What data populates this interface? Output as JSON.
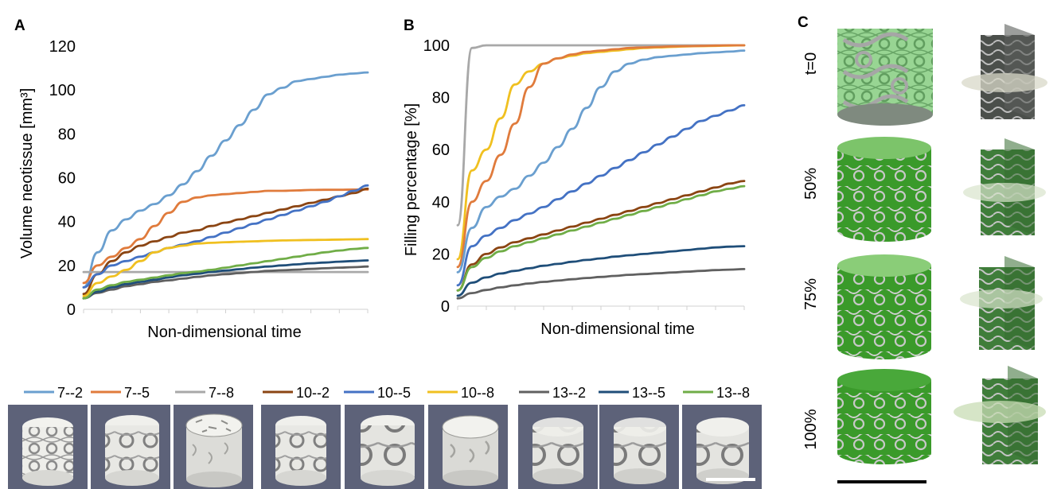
{
  "panels": {
    "a": "A",
    "b": "B",
    "c": "C"
  },
  "colors": {
    "7--2": "#6a9fcf",
    "7--5": "#e07b3c",
    "7--8": "#a8a8a8",
    "10--2": "#8b4513",
    "10--5": "#4472c4",
    "10--8": "#f0c020",
    "13--2": "#606060",
    "13--5": "#1f4e79",
    "13--8": "#70ad47"
  },
  "legend": [
    {
      "key": "7--2",
      "label": "7--2"
    },
    {
      "key": "7--5",
      "label": "7--5"
    },
    {
      "key": "7--8",
      "label": "7--8"
    },
    {
      "key": "10--2",
      "label": "10--2"
    },
    {
      "key": "10--5",
      "label": "10--5"
    },
    {
      "key": "10--8",
      "label": "10--8"
    },
    {
      "key": "13--2",
      "label": "13--2"
    },
    {
      "key": "13--5",
      "label": "13--5"
    },
    {
      "key": "13--8",
      "label": "13--8"
    }
  ],
  "chart_data": [
    {
      "type": "line",
      "xlabel": "Non-dimensional time",
      "ylabel": "Volume neotissue [mm³]",
      "ylim": [
        0,
        120
      ],
      "yticks": [
        0,
        20,
        40,
        60,
        80,
        100,
        120
      ],
      "grid": false,
      "x": [
        0,
        0.05,
        0.1,
        0.15,
        0.2,
        0.25,
        0.3,
        0.35,
        0.4,
        0.45,
        0.5,
        0.55,
        0.6,
        0.65,
        0.7,
        0.75,
        0.8,
        0.85,
        0.9,
        0.95,
        1.0
      ],
      "series": [
        {
          "key": "7--2",
          "values": [
            10,
            26,
            36,
            41,
            45,
            48,
            52,
            57,
            63,
            70,
            77,
            84,
            91,
            98,
            101,
            104,
            105,
            106,
            107,
            107.5,
            108
          ]
        },
        {
          "key": "7--5",
          "values": [
            12,
            20,
            24,
            28,
            32,
            38,
            44,
            49,
            51,
            52,
            52.5,
            53,
            53.5,
            54,
            54,
            54.2,
            54.4,
            54.5,
            54.5,
            54.6,
            54.6
          ]
        },
        {
          "key": "7--8",
          "values": [
            17,
            17,
            17,
            17,
            17,
            17,
            17,
            17,
            17,
            17,
            17,
            17,
            17,
            17,
            17,
            17,
            17,
            17,
            17,
            17,
            17
          ]
        },
        {
          "key": "10--2",
          "values": [
            7,
            16,
            22,
            26,
            29,
            31,
            33,
            35,
            36,
            38,
            39.5,
            41,
            42.5,
            44,
            45.5,
            47,
            48.5,
            50,
            51.5,
            53,
            55
          ]
        },
        {
          "key": "10--5",
          "values": [
            10,
            16,
            20,
            22,
            24,
            26,
            28,
            29.5,
            31,
            33,
            35,
            37,
            39,
            41,
            43,
            45,
            47,
            49,
            51.5,
            54,
            56.5
          ]
        },
        {
          "key": "10--8",
          "values": [
            6,
            12,
            15,
            18,
            22,
            26,
            28,
            29,
            30,
            30.3,
            30.6,
            30.8,
            31,
            31.2,
            31.4,
            31.5,
            31.6,
            31.7,
            31.8,
            31.9,
            32
          ]
        },
        {
          "key": "13--2",
          "values": [
            5,
            7.5,
            9,
            10.5,
            11.5,
            12.5,
            13.2,
            14,
            14.8,
            15.5,
            16,
            16.5,
            17,
            17.5,
            17.8,
            18.1,
            18.4,
            18.7,
            19,
            19.2,
            19.5
          ]
        },
        {
          "key": "13--5",
          "values": [
            5,
            8,
            10,
            11.5,
            12.5,
            13.5,
            14.5,
            15.5,
            16.2,
            17,
            17.7,
            18.3,
            19,
            19.5,
            20,
            20.5,
            21,
            21.3,
            21.7,
            22,
            22.3
          ]
        },
        {
          "key": "13--8",
          "values": [
            5,
            9,
            11,
            12.5,
            13.5,
            14.5,
            15.5,
            16.5,
            17.2,
            18,
            19,
            20,
            21,
            22,
            23,
            24,
            25,
            26,
            26.8,
            27.5,
            28
          ]
        }
      ]
    },
    {
      "type": "line",
      "xlabel": "Non-dimensional time",
      "ylabel": "Filling percentage [%]",
      "ylim": [
        0,
        100
      ],
      "yticks": [
        0,
        20,
        40,
        60,
        80,
        100
      ],
      "grid": false,
      "x": [
        0,
        0.05,
        0.1,
        0.15,
        0.2,
        0.25,
        0.3,
        0.35,
        0.4,
        0.45,
        0.5,
        0.55,
        0.6,
        0.65,
        0.7,
        0.75,
        0.8,
        0.85,
        0.9,
        0.95,
        1.0
      ],
      "series": [
        {
          "key": "7--8",
          "values": [
            31,
            99,
            100,
            100,
            100,
            100,
            100,
            100,
            100,
            100,
            100,
            100,
            100,
            100,
            100,
            100,
            100,
            100,
            100,
            100,
            100
          ]
        },
        {
          "key": "10--8",
          "values": [
            18,
            52,
            60,
            72,
            85,
            90,
            93,
            95,
            96,
            97,
            97.5,
            98,
            98.5,
            99,
            99.2,
            99.4,
            99.6,
            99.7,
            99.8,
            99.9,
            100
          ]
        },
        {
          "key": "7--5",
          "values": [
            15,
            40,
            48,
            58,
            70,
            84,
            93,
            95,
            96.5,
            97.5,
            98,
            98.5,
            99,
            99.2,
            99.4,
            99.6,
            99.7,
            99.8,
            99.9,
            100,
            100
          ]
        },
        {
          "key": "7--2",
          "values": [
            13,
            30,
            38,
            42,
            45,
            50,
            55,
            61,
            68,
            76,
            84,
            90,
            93,
            94.5,
            95.5,
            96,
            96.5,
            97,
            97.3,
            97.6,
            98
          ]
        },
        {
          "key": "10--5",
          "values": [
            8,
            23,
            27,
            30,
            33,
            35.5,
            38,
            41,
            44,
            47,
            50,
            53,
            56,
            59,
            62,
            65,
            68,
            71,
            73,
            75,
            77
          ]
        },
        {
          "key": "10--2",
          "values": [
            6,
            16,
            20,
            22.5,
            24.5,
            26,
            27.5,
            29,
            30.5,
            32,
            33.5,
            35,
            36.5,
            38,
            39.5,
            41,
            42.5,
            44,
            45.5,
            47,
            48
          ]
        },
        {
          "key": "13--8",
          "values": [
            6,
            15,
            18.5,
            21,
            23,
            24.5,
            26,
            27.5,
            29,
            30.5,
            32,
            33.5,
            35,
            36.5,
            38,
            39.5,
            41,
            42.5,
            44,
            45,
            46
          ]
        },
        {
          "key": "13--5",
          "values": [
            4,
            9,
            11,
            12.5,
            13.5,
            14.5,
            15.5,
            16.2,
            17,
            17.7,
            18.3,
            19,
            19.5,
            20,
            20.5,
            21,
            21.5,
            22,
            22.5,
            22.8,
            23
          ]
        },
        {
          "key": "13--2",
          "values": [
            3,
            5,
            6.2,
            7.2,
            8,
            8.7,
            9.3,
            9.8,
            10.3,
            10.8,
            11.2,
            11.6,
            12,
            12.3,
            12.6,
            12.9,
            13.2,
            13.5,
            13.8,
            14,
            14.2
          ]
        }
      ]
    }
  ],
  "panel_c": {
    "rows": [
      "t=0",
      "50%",
      "75%",
      "100%"
    ]
  }
}
